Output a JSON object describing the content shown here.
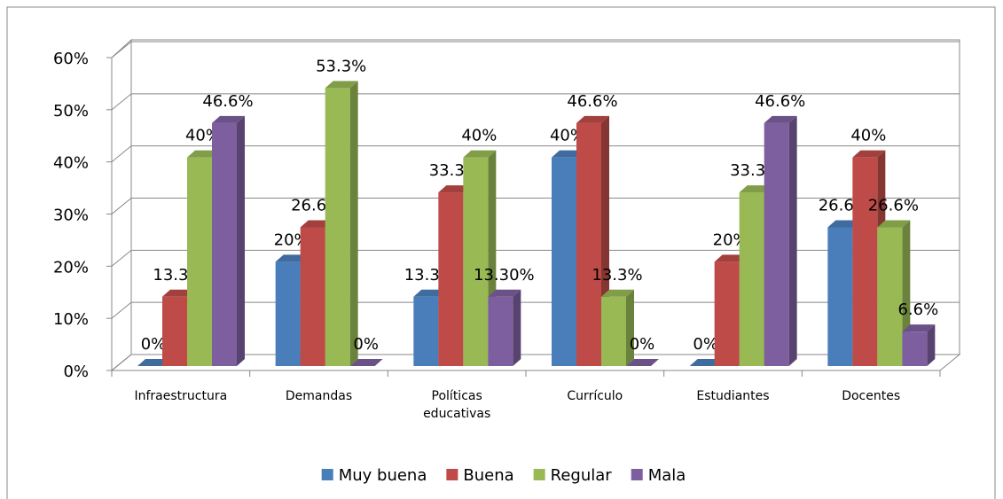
{
  "chart_data": {
    "type": "bar3d",
    "categories": [
      "Infraestructura",
      "Demandas",
      "Políticas educativas",
      "Currículo",
      "Estudiantes",
      "Docentes"
    ],
    "series": [
      {
        "name": "Muy buena",
        "color": "#4a7ebb",
        "values": [
          0,
          20,
          13.3,
          40,
          0,
          26.6
        ],
        "value_labels": [
          "0%",
          "20%",
          "13.3%",
          "40%",
          "0%",
          "26.6%"
        ]
      },
      {
        "name": "Buena",
        "color": "#be4b48",
        "values": [
          13.3,
          26.6,
          33.3,
          46.6,
          20,
          40
        ],
        "value_labels": [
          "13.3%",
          "26.6%",
          "33.3%",
          "46.6%",
          "20%",
          "40%"
        ]
      },
      {
        "name": "Regular",
        "color": "#98b954",
        "values": [
          40,
          53.3,
          40,
          13.3,
          33.3,
          26.6
        ],
        "value_labels": [
          "40%",
          "53.3%",
          "40%",
          "13.3%",
          "33.3%",
          "26.6%"
        ]
      },
      {
        "name": "Mala",
        "color": "#7d5fa0",
        "values": [
          46.6,
          0,
          13.3,
          0,
          46.6,
          6.6
        ],
        "value_labels": [
          "46.6%",
          "0%",
          "13.30%",
          "0%",
          "46.6%",
          "6.6%"
        ]
      }
    ],
    "ylim": [
      0,
      60
    ],
    "yticks": [
      {
        "value": 0,
        "label": "0%"
      },
      {
        "value": 10,
        "label": "10%"
      },
      {
        "value": 20,
        "label": "20%"
      },
      {
        "value": 30,
        "label": "30%"
      },
      {
        "value": 40,
        "label": "40%"
      },
      {
        "value": 50,
        "label": "50%"
      },
      {
        "value": 60,
        "label": "60%"
      }
    ],
    "grid": true,
    "legend": "bottom"
  }
}
